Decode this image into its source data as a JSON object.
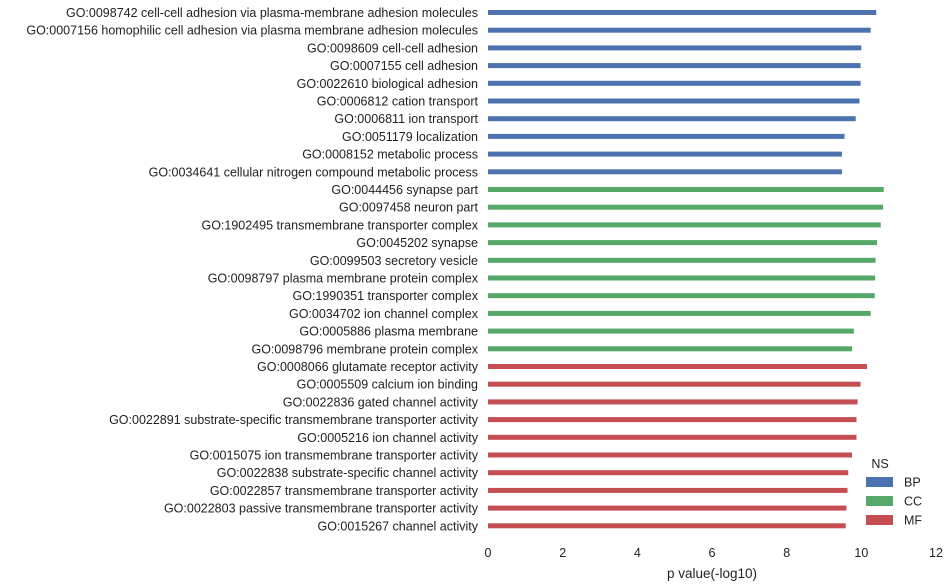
{
  "chart_data": {
    "type": "bar",
    "orientation": "horizontal",
    "xlabel": "p value(-log10)",
    "ylabel": "",
    "xlim": [
      0,
      12
    ],
    "xticks": [
      0,
      2,
      4,
      6,
      8,
      10,
      12
    ],
    "grid": false,
    "legend": {
      "title": "NS",
      "placement": "lower-right",
      "entries": [
        {
          "name": "BP",
          "color": "#4c72b0"
        },
        {
          "name": "CC",
          "color": "#55a868"
        },
        {
          "name": "MF",
          "color": "#c44e52"
        }
      ]
    },
    "bars": [
      {
        "label": "GO:0098742 cell-cell adhesion via plasma-membrane adhesion molecules",
        "group": "BP",
        "value": 10.4
      },
      {
        "label": "GO:0007156 homophilic cell adhesion via plasma membrane adhesion molecules",
        "group": "BP",
        "value": 10.25
      },
      {
        "label": "GO:0098609 cell-cell adhesion",
        "group": "BP",
        "value": 10.0
      },
      {
        "label": "GO:0007155 cell adhesion",
        "group": "BP",
        "value": 9.98
      },
      {
        "label": "GO:0022610 biological adhesion",
        "group": "BP",
        "value": 9.98
      },
      {
        "label": "GO:0006812 cation transport",
        "group": "BP",
        "value": 9.95
      },
      {
        "label": "GO:0006811 ion transport",
        "group": "BP",
        "value": 9.85
      },
      {
        "label": "GO:0051179 localization",
        "group": "BP",
        "value": 9.55
      },
      {
        "label": "GO:0008152 metabolic process",
        "group": "BP",
        "value": 9.48
      },
      {
        "label": "GO:0034641 cellular nitrogen compound metabolic process",
        "group": "BP",
        "value": 9.48
      },
      {
        "label": "GO:0044456 synapse part",
        "group": "CC",
        "value": 10.6
      },
      {
        "label": "GO:0097458 neuron part",
        "group": "CC",
        "value": 10.58
      },
      {
        "label": "GO:1902495 transmembrane transporter complex",
        "group": "CC",
        "value": 10.52
      },
      {
        "label": "GO:0045202 synapse",
        "group": "CC",
        "value": 10.42
      },
      {
        "label": "GO:0099503 secretory vesicle",
        "group": "CC",
        "value": 10.38
      },
      {
        "label": "GO:0098797 plasma membrane protein complex",
        "group": "CC",
        "value": 10.37
      },
      {
        "label": "GO:1990351 transporter complex",
        "group": "CC",
        "value": 10.36
      },
      {
        "label": "GO:0034702 ion channel complex",
        "group": "CC",
        "value": 10.25
      },
      {
        "label": "GO:0005886 plasma membrane",
        "group": "CC",
        "value": 9.8
      },
      {
        "label": "GO:0098796 membrane protein complex",
        "group": "CC",
        "value": 9.75
      },
      {
        "label": "GO:0008066 glutamate receptor activity",
        "group": "MF",
        "value": 10.15
      },
      {
        "label": "GO:0005509 calcium ion binding",
        "group": "MF",
        "value": 9.98
      },
      {
        "label": "GO:0022836 gated channel activity",
        "group": "MF",
        "value": 9.9
      },
      {
        "label": "GO:0022891 substrate-specific transmembrane transporter activity",
        "group": "MF",
        "value": 9.87
      },
      {
        "label": "GO:0005216 ion channel activity",
        "group": "MF",
        "value": 9.87
      },
      {
        "label": "GO:0015075 ion transmembrane transporter activity",
        "group": "MF",
        "value": 9.75
      },
      {
        "label": "GO:0022838 substrate-specific channel activity",
        "group": "MF",
        "value": 9.65
      },
      {
        "label": "GO:0022857 transmembrane transporter activity",
        "group": "MF",
        "value": 9.63
      },
      {
        "label": "GO:0022803 passive transmembrane transporter activity",
        "group": "MF",
        "value": 9.6
      },
      {
        "label": "GO:0015267 channel activity",
        "group": "MF",
        "value": 9.58
      }
    ]
  }
}
